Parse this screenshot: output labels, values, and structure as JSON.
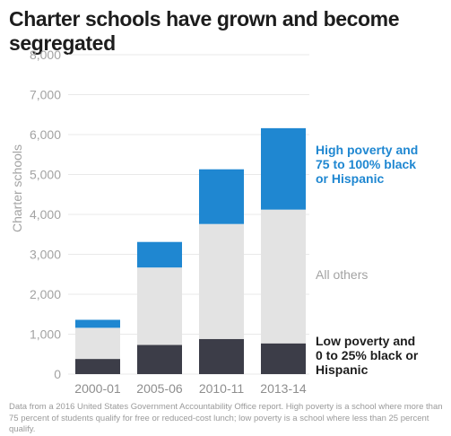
{
  "title": "Charter schools have grown and become segregated",
  "note": "Data from a 2016 United States Government Accountability Office report. High poverty is a school where more than 75 percent of students qualify for free or reduced-cost lunch; low poverty is a school where less than 25 percent qualify.",
  "colors": {
    "high_poverty": "#1f87d1",
    "all_others": "#e3e3e3",
    "low_poverty": "#3c3d48",
    "axis_text": "#a3a3a3",
    "grid": "#e9e9e9"
  },
  "chart_data": {
    "type": "bar",
    "stacked": true,
    "title": "Charter schools have grown and become segregated",
    "xlabel": "",
    "ylabel": "Charter schools",
    "ylim": [
      0,
      8000
    ],
    "yticks": [
      0,
      1000,
      2000,
      3000,
      4000,
      5000,
      6000,
      7000,
      8000
    ],
    "ytick_labels": [
      "0",
      "1,000",
      "2,000",
      "3,000",
      "4,000",
      "5,000",
      "6,000",
      "7,000",
      "8,000"
    ],
    "grid": true,
    "categories": [
      "2000-01",
      "2005-06",
      "2010-11",
      "2013-14"
    ],
    "series": [
      {
        "name": "Low poverty and 0 to 25% black or Hispanic",
        "label_lines": [
          "Low poverty and",
          "0 to 25% black or",
          "Hispanic"
        ],
        "color": "#3c3d48",
        "values": [
          380,
          730,
          880,
          770
        ]
      },
      {
        "name": "All others",
        "label_lines": [
          "All others"
        ],
        "color": "#e3e3e3",
        "values": [
          780,
          1940,
          2880,
          3350
        ]
      },
      {
        "name": "High poverty and 75 to 100% black or Hispanic",
        "label_lines": [
          "High poverty and",
          "75 to 100% black",
          "or Hispanic"
        ],
        "color": "#1f87d1",
        "values": [
          200,
          640,
          1370,
          2040
        ]
      }
    ],
    "legend_placement": "right"
  }
}
